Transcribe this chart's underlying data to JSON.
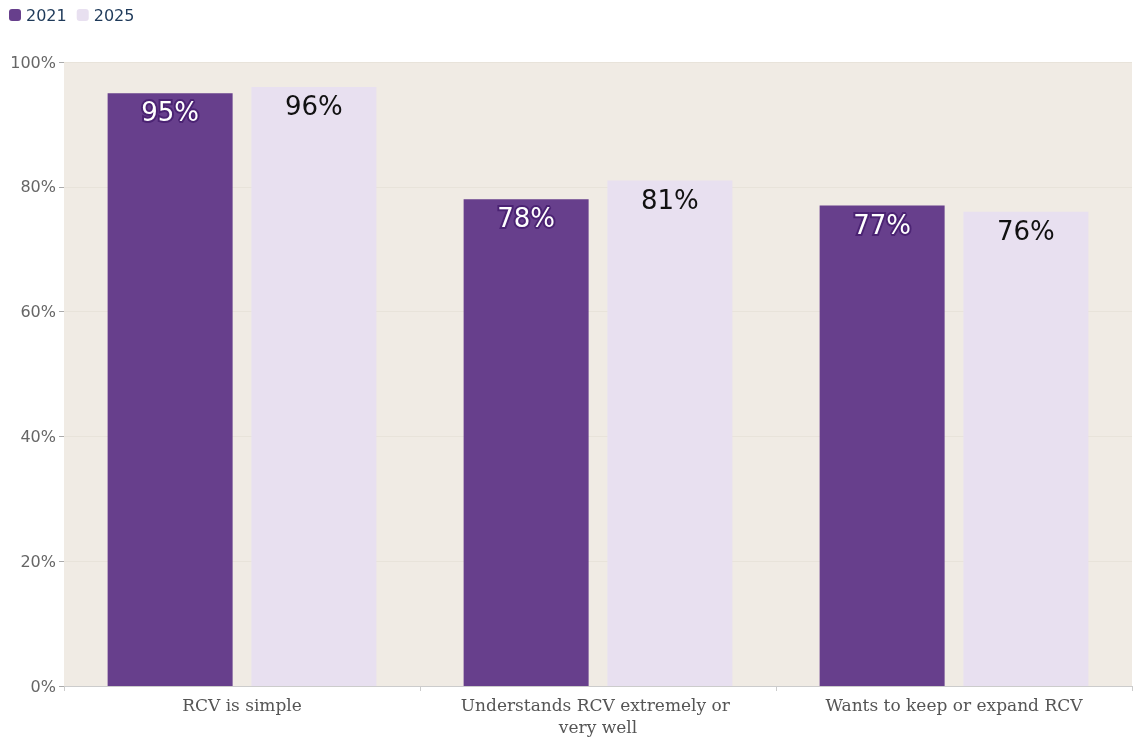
{
  "chart_data": {
    "type": "bar",
    "categories": [
      "RCV is simple",
      "Understands RCV extremely or very well",
      "Wants to keep or expand RCV"
    ],
    "series": [
      {
        "name": "2021",
        "color": "#673f8c",
        "values": [
          95,
          78,
          77
        ],
        "value_labels": [
          "95%",
          "78%",
          "77%"
        ]
      },
      {
        "name": "2025",
        "color": "#e8e0f0",
        "values": [
          96,
          81,
          76
        ],
        "value_labels": [
          "96%",
          "81%",
          "76%"
        ]
      }
    ],
    "ylim": [
      0,
      100
    ],
    "yticks": [
      {
        "value": 0,
        "label": "0%"
      },
      {
        "value": 20,
        "label": "20%"
      },
      {
        "value": 40,
        "label": "40%"
      },
      {
        "value": 60,
        "label": "60%"
      },
      {
        "value": 80,
        "label": "80%"
      },
      {
        "value": 100,
        "label": "100%"
      }
    ],
    "grid": "y",
    "legend": "top left"
  }
}
